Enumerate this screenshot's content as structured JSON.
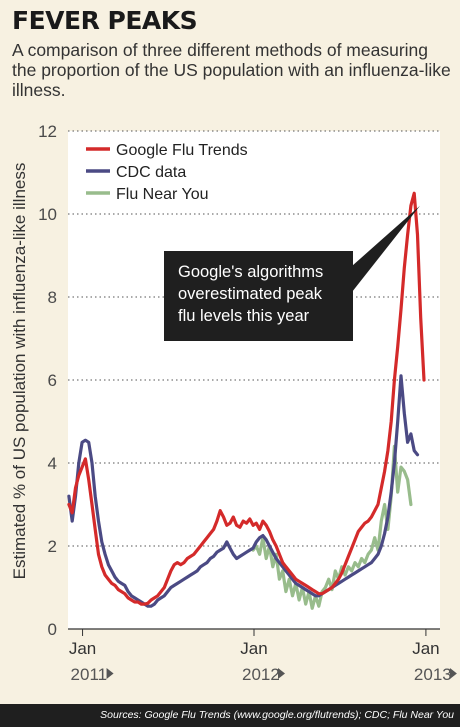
{
  "header": {
    "title": "FEVER PEAKS",
    "subtitle": "A comparison of three different methods of measuring the proportion of the US population with an influenza-like illness."
  },
  "footer": {
    "source": "Sources: Google Flu Trends (www.google.org/flutrends); CDC; Flu Near You"
  },
  "colors": {
    "background": "#f7f1e1",
    "google": "#d42a2a",
    "cdc": "#4b4a84",
    "fny": "#98bc8c",
    "annotation": "#1f1f1f"
  },
  "chart_data": {
    "type": "line",
    "title": "FEVER PEAKS",
    "ylabel": "Estimated % of US population with influenza-like illness",
    "xlabel": "",
    "ylim": [
      0,
      12
    ],
    "yticks": [
      0,
      2,
      4,
      6,
      8,
      10,
      12
    ],
    "xlim": [
      "2010-12-01",
      "2013-01-31"
    ],
    "xticks": [
      {
        "date": "2011-01-01",
        "label": "Jan",
        "year": "2011"
      },
      {
        "date": "2012-01-01",
        "label": "Jan",
        "year": "2012"
      },
      {
        "date": "2013-01-01",
        "label": "Jan",
        "year": "2013"
      }
    ],
    "grid": "horizontal dotted",
    "legend_position": "top-left",
    "annotation": {
      "lines": [
        "Google's algorithms",
        "overestimated peak",
        "flu levels this year"
      ],
      "points_to": {
        "date": "2012-12-28",
        "value": 10.2
      }
    },
    "series": [
      {
        "name": "Google Flu Trends",
        "color": "#d42a2a",
        "points": [
          [
            "2010-12-03",
            3.0
          ],
          [
            "2010-12-10",
            2.8
          ],
          [
            "2010-12-17",
            3.4
          ],
          [
            "2010-12-24",
            3.7
          ],
          [
            "2010-12-31",
            3.9
          ],
          [
            "2011-01-07",
            4.1
          ],
          [
            "2011-01-14",
            3.6
          ],
          [
            "2011-01-21",
            3.0
          ],
          [
            "2011-01-28",
            2.4
          ],
          [
            "2011-02-04",
            1.8
          ],
          [
            "2011-02-11",
            1.5
          ],
          [
            "2011-02-18",
            1.3
          ],
          [
            "2011-02-25",
            1.2
          ],
          [
            "2011-03-04",
            1.1
          ],
          [
            "2011-03-11",
            1.05
          ],
          [
            "2011-03-18",
            0.95
          ],
          [
            "2011-03-25",
            0.9
          ],
          [
            "2011-04-01",
            0.85
          ],
          [
            "2011-04-08",
            0.75
          ],
          [
            "2011-04-15",
            0.7
          ],
          [
            "2011-04-22",
            0.65
          ],
          [
            "2011-04-29",
            0.65
          ],
          [
            "2011-05-06",
            0.6
          ],
          [
            "2011-05-13",
            0.6
          ],
          [
            "2011-05-20",
            0.62
          ],
          [
            "2011-05-27",
            0.7
          ],
          [
            "2011-06-03",
            0.75
          ],
          [
            "2011-06-10",
            0.8
          ],
          [
            "2011-06-17",
            0.9
          ],
          [
            "2011-06-24",
            1.0
          ],
          [
            "2011-07-01",
            1.2
          ],
          [
            "2011-07-08",
            1.4
          ],
          [
            "2011-07-15",
            1.55
          ],
          [
            "2011-07-22",
            1.6
          ],
          [
            "2011-07-29",
            1.55
          ],
          [
            "2011-08-05",
            1.6
          ],
          [
            "2011-08-12",
            1.7
          ],
          [
            "2011-08-19",
            1.75
          ],
          [
            "2011-08-26",
            1.8
          ],
          [
            "2011-09-02",
            1.9
          ],
          [
            "2011-09-09",
            2.0
          ],
          [
            "2011-09-16",
            2.1
          ],
          [
            "2011-09-23",
            2.2
          ],
          [
            "2011-09-30",
            2.3
          ],
          [
            "2011-10-07",
            2.4
          ],
          [
            "2011-10-14",
            2.6
          ],
          [
            "2011-10-21",
            2.85
          ],
          [
            "2011-10-28",
            2.7
          ],
          [
            "2011-11-04",
            2.5
          ],
          [
            "2011-11-11",
            2.55
          ],
          [
            "2011-11-18",
            2.7
          ],
          [
            "2011-11-25",
            2.5
          ],
          [
            "2011-12-02",
            2.45
          ],
          [
            "2011-12-09",
            2.6
          ],
          [
            "2011-12-16",
            2.55
          ],
          [
            "2011-12-23",
            2.65
          ],
          [
            "2011-12-30",
            2.5
          ],
          [
            "2012-01-06",
            2.55
          ],
          [
            "2012-01-13",
            2.4
          ],
          [
            "2012-01-20",
            2.6
          ],
          [
            "2012-01-27",
            2.5
          ],
          [
            "2012-02-03",
            2.35
          ],
          [
            "2012-02-10",
            2.15
          ],
          [
            "2012-02-17",
            2.0
          ],
          [
            "2012-02-24",
            1.8
          ],
          [
            "2012-03-02",
            1.6
          ],
          [
            "2012-03-09",
            1.5
          ],
          [
            "2012-03-16",
            1.4
          ],
          [
            "2012-03-23",
            1.3
          ],
          [
            "2012-03-30",
            1.2
          ],
          [
            "2012-04-06",
            1.15
          ],
          [
            "2012-04-13",
            1.1
          ],
          [
            "2012-04-20",
            1.05
          ],
          [
            "2012-04-27",
            1.0
          ],
          [
            "2012-05-04",
            0.95
          ],
          [
            "2012-05-11",
            0.9
          ],
          [
            "2012-05-18",
            0.85
          ],
          [
            "2012-05-25",
            0.85
          ],
          [
            "2012-06-01",
            0.9
          ],
          [
            "2012-06-08",
            0.95
          ],
          [
            "2012-06-15",
            1.0
          ],
          [
            "2012-06-22",
            1.1
          ],
          [
            "2012-06-29",
            1.2
          ],
          [
            "2012-07-06",
            1.35
          ],
          [
            "2012-07-13",
            1.55
          ],
          [
            "2012-07-20",
            1.75
          ],
          [
            "2012-07-27",
            1.95
          ],
          [
            "2012-08-03",
            2.15
          ],
          [
            "2012-08-10",
            2.35
          ],
          [
            "2012-08-17",
            2.45
          ],
          [
            "2012-08-24",
            2.55
          ],
          [
            "2012-08-31",
            2.6
          ],
          [
            "2012-09-07",
            2.7
          ],
          [
            "2012-09-14",
            2.85
          ],
          [
            "2012-09-21",
            3.0
          ],
          [
            "2012-09-28",
            3.4
          ],
          [
            "2012-10-05",
            3.8
          ],
          [
            "2012-10-12",
            4.3
          ],
          [
            "2012-10-19",
            5.0
          ],
          [
            "2012-10-26",
            6.0
          ],
          [
            "2012-11-02",
            6.8
          ],
          [
            "2012-11-09",
            7.7
          ],
          [
            "2012-11-16",
            8.7
          ],
          [
            "2012-11-23",
            9.5
          ],
          [
            "2012-11-30",
            10.2
          ],
          [
            "2012-12-07",
            10.5
          ],
          [
            "2012-12-14",
            9.5
          ],
          [
            "2012-12-21",
            7.5
          ],
          [
            "2012-12-28",
            6.0
          ]
        ]
      },
      {
        "name": "CDC data",
        "color": "#4b4a84",
        "points": [
          [
            "2010-12-03",
            3.2
          ],
          [
            "2010-12-10",
            2.6
          ],
          [
            "2010-12-17",
            3.2
          ],
          [
            "2010-12-24",
            4.0
          ],
          [
            "2010-12-31",
            4.5
          ],
          [
            "2011-01-07",
            4.55
          ],
          [
            "2011-01-14",
            4.5
          ],
          [
            "2011-01-21",
            4.0
          ],
          [
            "2011-01-28",
            3.2
          ],
          [
            "2011-02-04",
            2.6
          ],
          [
            "2011-02-11",
            2.1
          ],
          [
            "2011-02-18",
            1.8
          ],
          [
            "2011-02-25",
            1.55
          ],
          [
            "2011-03-04",
            1.4
          ],
          [
            "2011-03-11",
            1.25
          ],
          [
            "2011-03-18",
            1.15
          ],
          [
            "2011-03-25",
            1.1
          ],
          [
            "2011-04-01",
            1.05
          ],
          [
            "2011-04-08",
            0.9
          ],
          [
            "2011-04-15",
            0.8
          ],
          [
            "2011-04-22",
            0.75
          ],
          [
            "2011-04-29",
            0.7
          ],
          [
            "2011-05-06",
            0.65
          ],
          [
            "2011-05-13",
            0.6
          ],
          [
            "2011-05-20",
            0.55
          ],
          [
            "2011-05-27",
            0.55
          ],
          [
            "2011-06-03",
            0.6
          ],
          [
            "2011-06-10",
            0.7
          ],
          [
            "2011-06-17",
            0.75
          ],
          [
            "2011-06-24",
            0.8
          ],
          [
            "2011-07-01",
            0.9
          ],
          [
            "2011-07-08",
            1.0
          ],
          [
            "2011-07-15",
            1.05
          ],
          [
            "2011-07-22",
            1.1
          ],
          [
            "2011-07-29",
            1.15
          ],
          [
            "2011-08-05",
            1.2
          ],
          [
            "2011-08-12",
            1.25
          ],
          [
            "2011-08-19",
            1.3
          ],
          [
            "2011-08-26",
            1.35
          ],
          [
            "2011-09-02",
            1.4
          ],
          [
            "2011-09-09",
            1.5
          ],
          [
            "2011-09-16",
            1.55
          ],
          [
            "2011-09-23",
            1.6
          ],
          [
            "2011-09-30",
            1.7
          ],
          [
            "2011-10-07",
            1.75
          ],
          [
            "2011-10-14",
            1.85
          ],
          [
            "2011-10-21",
            1.9
          ],
          [
            "2011-10-28",
            1.95
          ],
          [
            "2011-11-04",
            2.1
          ],
          [
            "2011-11-11",
            1.95
          ],
          [
            "2011-11-18",
            1.8
          ],
          [
            "2011-11-25",
            1.7
          ],
          [
            "2011-12-02",
            1.75
          ],
          [
            "2011-12-09",
            1.8
          ],
          [
            "2011-12-16",
            1.85
          ],
          [
            "2011-12-23",
            1.9
          ],
          [
            "2011-12-30",
            1.95
          ],
          [
            "2012-01-06",
            2.1
          ],
          [
            "2012-01-13",
            2.2
          ],
          [
            "2012-01-20",
            2.25
          ],
          [
            "2012-01-27",
            2.15
          ],
          [
            "2012-02-03",
            2.0
          ],
          [
            "2012-02-10",
            1.85
          ],
          [
            "2012-02-17",
            1.7
          ],
          [
            "2012-02-24",
            1.6
          ],
          [
            "2012-03-02",
            1.5
          ],
          [
            "2012-03-09",
            1.4
          ],
          [
            "2012-03-16",
            1.3
          ],
          [
            "2012-03-23",
            1.2
          ],
          [
            "2012-03-30",
            1.1
          ],
          [
            "2012-04-06",
            1.05
          ],
          [
            "2012-04-13",
            1.0
          ],
          [
            "2012-04-20",
            0.95
          ],
          [
            "2012-04-27",
            0.9
          ],
          [
            "2012-05-04",
            0.85
          ],
          [
            "2012-05-11",
            0.8
          ],
          [
            "2012-05-18",
            0.8
          ],
          [
            "2012-05-25",
            0.85
          ],
          [
            "2012-06-01",
            0.9
          ],
          [
            "2012-06-08",
            0.95
          ],
          [
            "2012-06-15",
            1.0
          ],
          [
            "2012-06-22",
            1.05
          ],
          [
            "2012-06-29",
            1.1
          ],
          [
            "2012-07-06",
            1.15
          ],
          [
            "2012-07-13",
            1.2
          ],
          [
            "2012-07-20",
            1.25
          ],
          [
            "2012-07-27",
            1.3
          ],
          [
            "2012-08-03",
            1.35
          ],
          [
            "2012-08-10",
            1.4
          ],
          [
            "2012-08-17",
            1.45
          ],
          [
            "2012-08-24",
            1.5
          ],
          [
            "2012-08-31",
            1.55
          ],
          [
            "2012-09-07",
            1.6
          ],
          [
            "2012-09-14",
            1.7
          ],
          [
            "2012-09-21",
            1.8
          ],
          [
            "2012-09-28",
            2.0
          ],
          [
            "2012-10-05",
            2.3
          ],
          [
            "2012-10-12",
            2.7
          ],
          [
            "2012-10-19",
            3.3
          ],
          [
            "2012-10-26",
            4.0
          ],
          [
            "2012-11-02",
            5.0
          ],
          [
            "2012-11-09",
            6.1
          ],
          [
            "2012-11-16",
            5.2
          ],
          [
            "2012-11-23",
            4.5
          ],
          [
            "2012-11-30",
            4.7
          ],
          [
            "2012-12-07",
            4.3
          ],
          [
            "2012-12-14",
            4.2
          ]
        ]
      },
      {
        "name": "Flu Near You",
        "color": "#98bc8c",
        "points": [
          [
            "2011-12-30",
            1.9
          ],
          [
            "2012-01-06",
            2.0
          ],
          [
            "2012-01-13",
            1.8
          ],
          [
            "2012-01-20",
            2.2
          ],
          [
            "2012-01-27",
            1.7
          ],
          [
            "2012-02-03",
            2.0
          ],
          [
            "2012-02-10",
            1.5
          ],
          [
            "2012-02-17",
            1.8
          ],
          [
            "2012-02-24",
            1.2
          ],
          [
            "2012-03-02",
            1.4
          ],
          [
            "2012-03-09",
            0.9
          ],
          [
            "2012-03-16",
            1.2
          ],
          [
            "2012-03-23",
            0.8
          ],
          [
            "2012-03-30",
            1.1
          ],
          [
            "2012-04-06",
            0.7
          ],
          [
            "2012-04-13",
            1.0
          ],
          [
            "2012-04-20",
            0.6
          ],
          [
            "2012-04-27",
            0.9
          ],
          [
            "2012-05-04",
            0.5
          ],
          [
            "2012-05-11",
            0.8
          ],
          [
            "2012-05-18",
            0.55
          ],
          [
            "2012-05-25",
            0.9
          ],
          [
            "2012-06-01",
            1.0
          ],
          [
            "2012-06-08",
            1.2
          ],
          [
            "2012-06-15",
            0.95
          ],
          [
            "2012-06-22",
            1.4
          ],
          [
            "2012-06-29",
            1.2
          ],
          [
            "2012-07-06",
            1.5
          ],
          [
            "2012-07-13",
            1.3
          ],
          [
            "2012-07-20",
            1.5
          ],
          [
            "2012-07-27",
            1.4
          ],
          [
            "2012-08-03",
            1.6
          ],
          [
            "2012-08-10",
            1.5
          ],
          [
            "2012-08-17",
            1.7
          ],
          [
            "2012-08-24",
            1.6
          ],
          [
            "2012-08-31",
            1.8
          ],
          [
            "2012-09-07",
            1.9
          ],
          [
            "2012-09-14",
            2.2
          ],
          [
            "2012-09-21",
            1.9
          ],
          [
            "2012-09-28",
            2.6
          ],
          [
            "2012-10-05",
            3.0
          ],
          [
            "2012-10-12",
            2.4
          ],
          [
            "2012-10-19",
            3.2
          ],
          [
            "2012-10-26",
            4.4
          ],
          [
            "2012-11-02",
            3.3
          ],
          [
            "2012-11-09",
            3.9
          ],
          [
            "2012-11-16",
            3.8
          ],
          [
            "2012-11-23",
            3.6
          ],
          [
            "2012-11-30",
            3.0
          ]
        ]
      }
    ]
  }
}
